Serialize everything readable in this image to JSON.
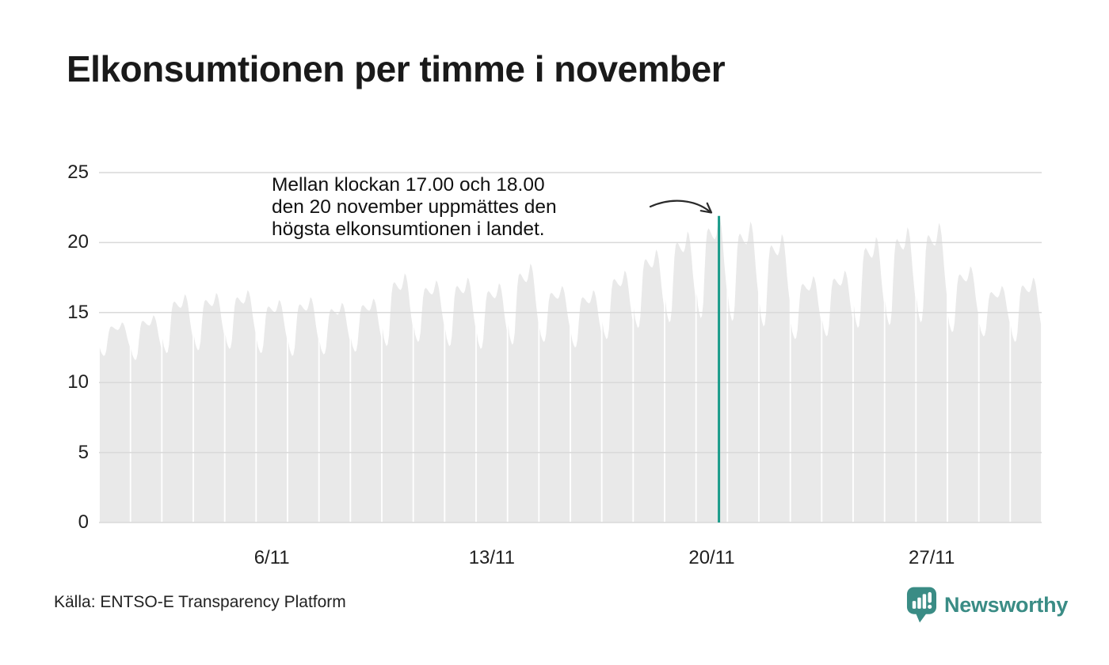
{
  "title": "Elkonsumtionen per timme i november",
  "annotation": {
    "lines": [
      "Mellan klockan 17.00 och 18.00",
      "den 20 november uppmättes den",
      "högsta elkonsumtionen i landet."
    ]
  },
  "source": "Källa: ENTSO-E Transparency Platform",
  "branding": {
    "name": "Newsworthy",
    "color": "#3a8c85",
    "icon": "bar-chart-speech-bubble-icon"
  },
  "colors": {
    "background": "#ffffff",
    "area": "#e9e9e9",
    "gridline": "#d9d9d9",
    "highlight": "#1a9b8a",
    "text": "#1a1a1a",
    "arrow": "#2a2a2a"
  },
  "chart_data": {
    "type": "area",
    "title": "Elkonsumtionen per timme i november",
    "xlabel": "",
    "ylabel": "",
    "legend": "none",
    "grid": "horizontal",
    "ylim": [
      0,
      25
    ],
    "yticks": [
      0,
      5,
      10,
      15,
      20,
      25
    ],
    "x_tick_labels": [
      {
        "day": 6,
        "label": "6/11"
      },
      {
        "day": 13,
        "label": "13/11"
      },
      {
        "day": 20,
        "label": "20/11"
      },
      {
        "day": 27,
        "label": "27/11"
      }
    ],
    "days_in_month": 30,
    "hours_per_day": 24,
    "hourly_profile": [
      0.25,
      0.12,
      0.05,
      0.0,
      0.02,
      0.15,
      0.45,
      0.72,
      0.85,
      0.88,
      0.86,
      0.83,
      0.8,
      0.78,
      0.77,
      0.81,
      0.9,
      1.0,
      0.97,
      0.88,
      0.73,
      0.55,
      0.4,
      0.28
    ],
    "days": [
      {
        "day": 1,
        "min": 11.9,
        "peak": 14.3
      },
      {
        "day": 2,
        "min": 11.6,
        "peak": 14.8
      },
      {
        "day": 3,
        "min": 12.1,
        "peak": 16.3
      },
      {
        "day": 4,
        "min": 12.3,
        "peak": 16.4
      },
      {
        "day": 5,
        "min": 12.4,
        "peak": 16.6
      },
      {
        "day": 6,
        "min": 12.1,
        "peak": 15.9
      },
      {
        "day": 7,
        "min": 11.9,
        "peak": 16.1
      },
      {
        "day": 8,
        "min": 12.0,
        "peak": 15.7
      },
      {
        "day": 9,
        "min": 12.2,
        "peak": 16.0
      },
      {
        "day": 10,
        "min": 12.6,
        "peak": 17.8
      },
      {
        "day": 11,
        "min": 12.9,
        "peak": 17.3
      },
      {
        "day": 12,
        "min": 12.6,
        "peak": 17.5
      },
      {
        "day": 13,
        "min": 12.4,
        "peak": 17.1
      },
      {
        "day": 14,
        "min": 12.7,
        "peak": 18.5
      },
      {
        "day": 15,
        "min": 12.9,
        "peak": 16.9
      },
      {
        "day": 16,
        "min": 12.5,
        "peak": 16.6
      },
      {
        "day": 17,
        "min": 13.1,
        "peak": 18.0
      },
      {
        "day": 18,
        "min": 13.9,
        "peak": 19.5
      },
      {
        "day": 19,
        "min": 14.3,
        "peak": 20.8
      },
      {
        "day": 20,
        "min": 14.6,
        "peak": 21.9
      },
      {
        "day": 21,
        "min": 14.4,
        "peak": 21.5
      },
      {
        "day": 22,
        "min": 14.0,
        "peak": 20.6
      },
      {
        "day": 23,
        "min": 13.1,
        "peak": 17.6
      },
      {
        "day": 24,
        "min": 13.3,
        "peak": 18.0
      },
      {
        "day": 25,
        "min": 13.9,
        "peak": 20.4
      },
      {
        "day": 26,
        "min": 14.1,
        "peak": 21.1
      },
      {
        "day": 27,
        "min": 14.3,
        "peak": 21.4
      },
      {
        "day": 28,
        "min": 13.6,
        "peak": 18.3
      },
      {
        "day": 29,
        "min": 13.3,
        "peak": 16.9
      },
      {
        "day": 30,
        "min": 12.9,
        "peak": 17.5
      }
    ],
    "highlight": {
      "day": 20,
      "hour_start": "17.00",
      "hour_end": "18.00",
      "value": 21.9
    }
  }
}
